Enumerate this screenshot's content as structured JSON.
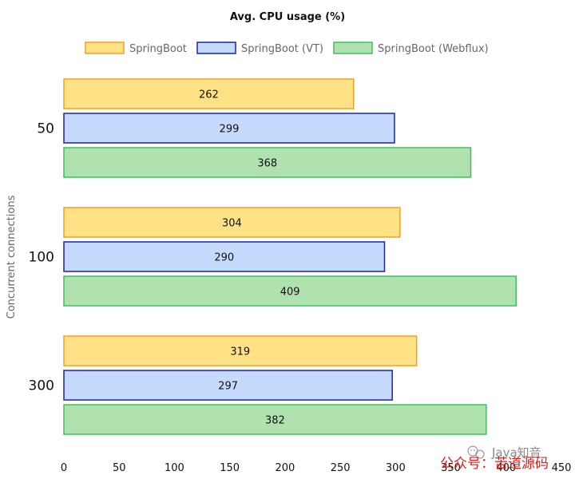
{
  "chart_data": {
    "type": "bar",
    "orientation": "horizontal",
    "title": "Avg. CPU usage (%)",
    "ylabel": "Concurrent connections",
    "xlabel": "",
    "categories": [
      "50",
      "100",
      "300"
    ],
    "series": [
      {
        "name": "SpringBoot",
        "values": [
          262,
          304,
          319
        ],
        "fill": "#FFE285",
        "stroke": "#F0A020"
      },
      {
        "name": "SpringBoot (VT)",
        "values": [
          299,
          290,
          297
        ],
        "fill": "#C5DAFD",
        "stroke": "#1A22B0"
      },
      {
        "name": "SpringBoot (Webflux)",
        "values": [
          368,
          409,
          382
        ],
        "fill": "#B0E2B0",
        "stroke": "#3FBF5F"
      }
    ],
    "xlim": [
      0,
      450
    ],
    "x_ticks": [
      0,
      50,
      100,
      150,
      200,
      250,
      300,
      350,
      400,
      450
    ],
    "legend_position": "top",
    "grid": false
  },
  "watermark": {
    "channel": "Java知音",
    "account": "公众号：苦道源码",
    "icon": "wechat-icon"
  }
}
